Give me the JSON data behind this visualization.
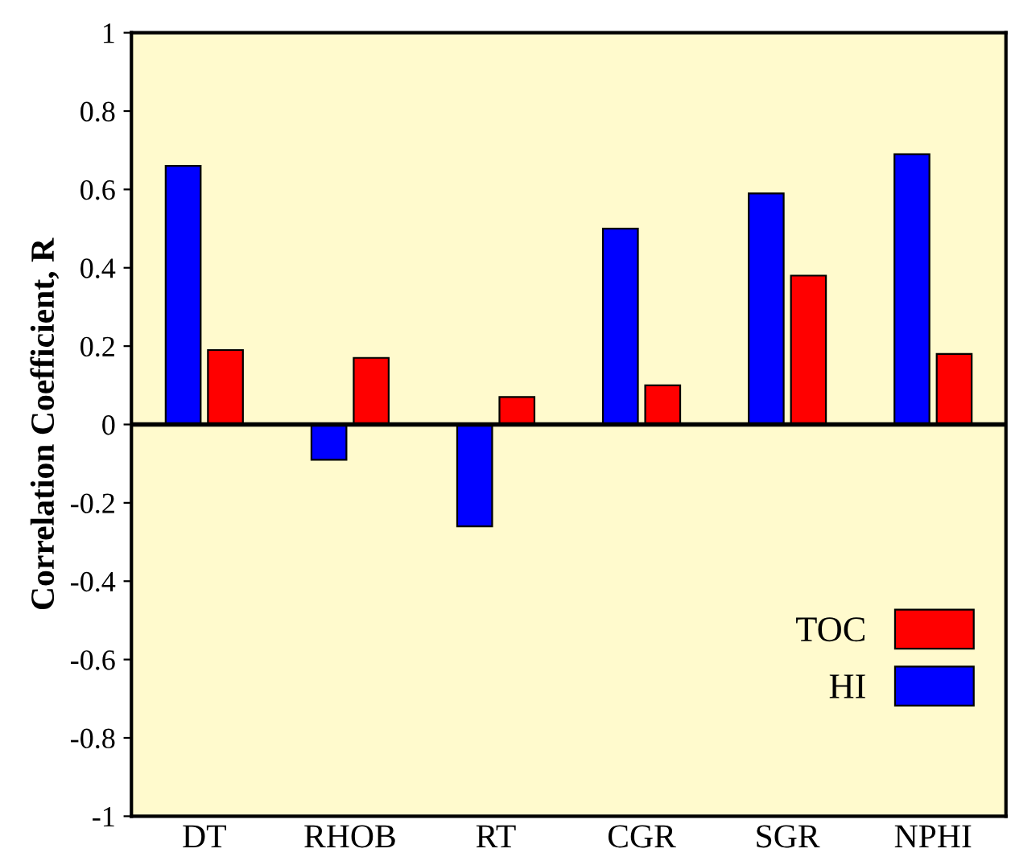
{
  "chart_data": {
    "type": "bar",
    "ylabel": "Correlation Coefficient, R",
    "categories": [
      "DT",
      "RHOB",
      "RT",
      "CGR",
      "SGR",
      "NPHI"
    ],
    "series": [
      {
        "name": "HI",
        "color": "#0000ff",
        "values": [
          0.66,
          -0.09,
          -0.26,
          0.5,
          0.59,
          0.69
        ]
      },
      {
        "name": "TOC",
        "color": "#ff0000",
        "values": [
          0.19,
          0.17,
          0.07,
          0.1,
          0.38,
          0.18
        ]
      }
    ],
    "ylim": [
      -1,
      1
    ],
    "yticks": [
      -1,
      -0.8,
      -0.6,
      -0.4,
      -0.2,
      0,
      0.2,
      0.4,
      0.6,
      0.8,
      1
    ],
    "ref_lines": [
      {
        "axis": "y",
        "value": 0
      }
    ],
    "legend": "bottom right",
    "grid": false
  }
}
